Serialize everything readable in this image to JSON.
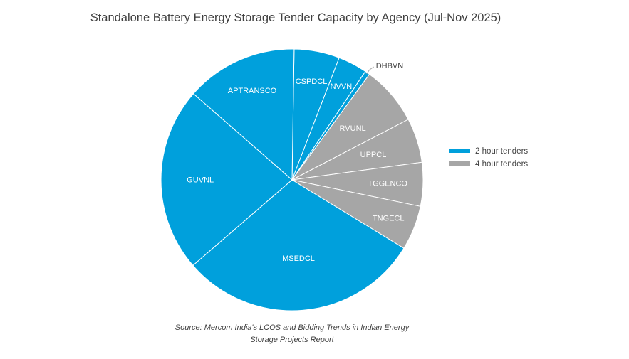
{
  "chart_data": {
    "type": "pie",
    "title": "Standalone Battery Energy Storage Tender Capacity by Agency (Jul-Nov 2025)",
    "slices": [
      {
        "label": "CSPDCL",
        "value": 5.6,
        "series": "2 hour tenders"
      },
      {
        "label": "NVVN",
        "value": 3.6,
        "series": "2 hour tenders"
      },
      {
        "label": "DHBVN",
        "value": 0.6,
        "series": "2 hour tenders"
      },
      {
        "label": "RVUNL",
        "value": 7.3,
        "series": "4 hour tenders"
      },
      {
        "label": "UPPCL",
        "value": 5.5,
        "series": "4 hour tenders"
      },
      {
        "label": "TGGENCO",
        "value": 5.4,
        "series": "4 hour tenders"
      },
      {
        "label": "TNGECL",
        "value": 5.5,
        "series": "4 hour tenders"
      },
      {
        "label": "MSEDCL",
        "value": 29.9,
        "series": "2 hour tenders"
      },
      {
        "label": "GUVNL",
        "value": 22.8,
        "series": "2 hour tenders"
      },
      {
        "label": "APTRANSCO",
        "value": 13.8,
        "series": "2 hour tenders"
      }
    ],
    "legend": {
      "position": "right",
      "entries": [
        {
          "name": "2 hour tenders",
          "color": "#00a0dc"
        },
        {
          "name": "4 hour tenders",
          "color": "#a6a6a6"
        }
      ]
    },
    "source": {
      "line1": "Source: Mercom India's LCOS and Bidding Trends in Indian Energy",
      "line2": "Storage Projects Report"
    }
  }
}
